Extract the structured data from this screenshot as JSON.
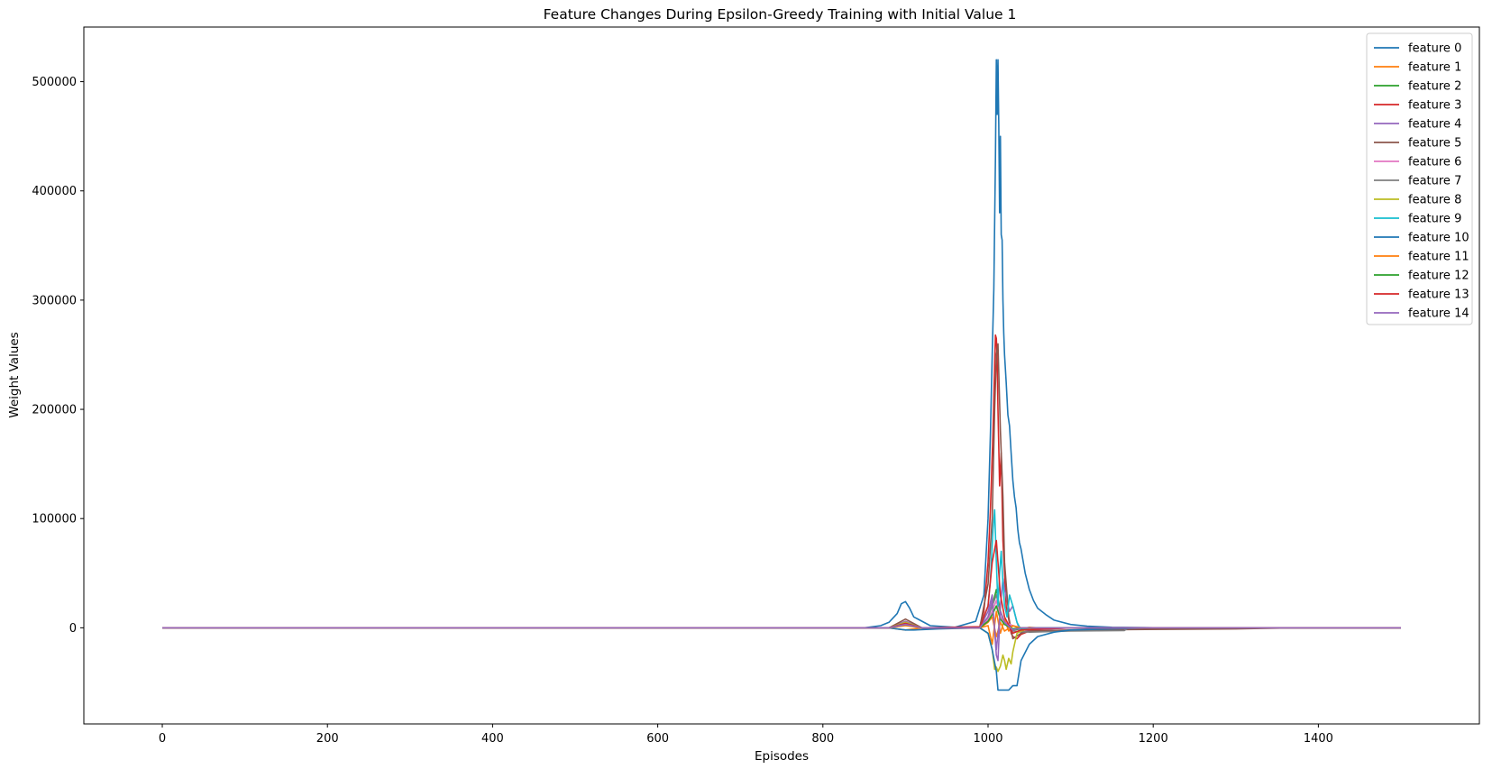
{
  "chart_data": {
    "type": "line",
    "title": "Feature Changes During Epsilon-Greedy Training with Initial Value 1",
    "xlabel": "Episodes",
    "ylabel": "Weight Values",
    "xlim": [
      -95,
      1595
    ],
    "ylim": [
      -88000,
      550000
    ],
    "xticks": [
      0,
      200,
      400,
      600,
      800,
      1000,
      1200,
      1400
    ],
    "yticks": [
      0,
      100000,
      200000,
      300000,
      400000,
      500000
    ],
    "grid": false,
    "legend_position": "top-right",
    "series": [
      {
        "name": "feature 0",
        "color": "#1f77b4",
        "x": [
          0,
          850,
          870,
          880,
          890,
          895,
          900,
          905,
          910,
          930,
          960,
          985,
          995,
          1000,
          1003,
          1005,
          1007,
          1008,
          1009,
          1010,
          1011,
          1012,
          1013,
          1014,
          1015,
          1016,
          1017,
          1018,
          1019,
          1020,
          1022,
          1024,
          1026,
          1028,
          1030,
          1032,
          1034,
          1036,
          1038,
          1040,
          1045,
          1050,
          1055,
          1060,
          1070,
          1080,
          1100,
          1120,
          1150,
          1200,
          1250,
          1300,
          1400,
          1500
        ],
        "y": [
          0,
          0,
          2000,
          5000,
          13000,
          22000,
          24000,
          18000,
          10000,
          2000,
          500,
          6000,
          30000,
          100000,
          180000,
          250000,
          310000,
          370000,
          430000,
          520000,
          470000,
          520000,
          460000,
          380000,
          450000,
          360000,
          355000,
          300000,
          270000,
          250000,
          225000,
          195000,
          185000,
          160000,
          135000,
          120000,
          110000,
          90000,
          78000,
          72000,
          50000,
          35000,
          25000,
          18000,
          12000,
          7000,
          3000,
          1500,
          500,
          100,
          0,
          0,
          0,
          0
        ]
      },
      {
        "name": "feature 1",
        "color": "#ff7f0e",
        "x": [
          0,
          880,
          900,
          920,
          990,
          1000,
          1005,
          1010,
          1015,
          1020,
          1025,
          1030,
          1040,
          1050,
          1060,
          1100,
          1200,
          1500
        ],
        "y": [
          0,
          0,
          -2000,
          0,
          0,
          2000,
          -15000,
          15000,
          -5000,
          8000,
          -3000,
          2000,
          -1000,
          500,
          0,
          0,
          0,
          0
        ]
      },
      {
        "name": "feature 2",
        "color": "#2ca02c",
        "x": [
          0,
          880,
          900,
          920,
          990,
          1000,
          1005,
          1010,
          1015,
          1020,
          1025,
          1030,
          1040,
          1050,
          1100,
          1500
        ],
        "y": [
          0,
          0,
          4000,
          0,
          0,
          10000,
          20000,
          35000,
          15000,
          5000,
          2000,
          -2000,
          -1000,
          0,
          0,
          0
        ]
      },
      {
        "name": "feature 3",
        "color": "#d62728",
        "x": [
          0,
          880,
          900,
          920,
          990,
          995,
          1000,
          1003,
          1006,
          1008,
          1009,
          1010,
          1011,
          1012,
          1014,
          1016,
          1018,
          1020,
          1022,
          1025,
          1028,
          1030,
          1035,
          1040,
          1050,
          1060,
          1100,
          1500
        ],
        "y": [
          0,
          0,
          5000,
          0,
          1000,
          15000,
          60000,
          110000,
          180000,
          240000,
          268000,
          265000,
          245000,
          200000,
          130000,
          160000,
          80000,
          50000,
          20000,
          8000,
          -5000,
          -8000,
          -10000,
          -6000,
          -3000,
          -1000,
          0,
          0
        ]
      },
      {
        "name": "feature 4",
        "color": "#9467bd",
        "x": [
          0,
          880,
          900,
          920,
          990,
          1000,
          1005,
          1010,
          1012,
          1015,
          1018,
          1020,
          1023,
          1026,
          1030,
          1035,
          1040,
          1050,
          1100,
          1500
        ],
        "y": [
          0,
          0,
          6000,
          0,
          0,
          15000,
          30000,
          -25000,
          -30000,
          20000,
          45000,
          35000,
          25000,
          15000,
          20000,
          5000,
          -5000,
          -2000,
          0,
          0
        ]
      },
      {
        "name": "feature 5",
        "color": "#8c564b",
        "x": [
          0,
          880,
          900,
          920,
          990,
          1000,
          1005,
          1008,
          1010,
          1012,
          1015,
          1018,
          1020,
          1025,
          1030,
          1040,
          1050,
          1100,
          1300,
          1370,
          1500
        ],
        "y": [
          0,
          0,
          8000,
          0,
          0,
          40000,
          100000,
          200000,
          250000,
          260000,
          180000,
          120000,
          60000,
          10000,
          -10000,
          -5000,
          -3000,
          -2000,
          -1000,
          0,
          0
        ]
      },
      {
        "name": "feature 6",
        "color": "#e377c2",
        "x": [
          0,
          880,
          900,
          920,
          990,
          1000,
          1005,
          1010,
          1015,
          1020,
          1030,
          1040,
          1100,
          1500
        ],
        "y": [
          0,
          0,
          3000,
          0,
          0,
          8000,
          15000,
          25000,
          10000,
          5000,
          2000,
          0,
          0,
          0
        ]
      },
      {
        "name": "feature 7",
        "color": "#7f7f7f",
        "x": [
          0,
          880,
          900,
          920,
          990,
          1000,
          1005,
          1010,
          1015,
          1020,
          1030,
          1050,
          1100,
          1165,
          1170,
          1300,
          1400,
          1500
        ],
        "y": [
          0,
          0,
          4000,
          0,
          0,
          10000,
          20000,
          30000,
          15000,
          5000,
          -3000,
          -4000,
          -3000,
          -2500,
          0,
          0,
          0,
          0
        ]
      },
      {
        "name": "feature 8",
        "color": "#bcbd22",
        "x": [
          0,
          880,
          900,
          920,
          990,
          1000,
          1005,
          1008,
          1010,
          1012,
          1015,
          1018,
          1020,
          1022,
          1025,
          1028,
          1030,
          1033,
          1035,
          1040,
          1050,
          1100,
          1500
        ],
        "y": [
          0,
          0,
          5000,
          0,
          0,
          -5000,
          -20000,
          -38000,
          -36000,
          -40000,
          -35000,
          -25000,
          -30000,
          -38000,
          -28000,
          -33000,
          -22000,
          -12000,
          -5000,
          -3000,
          -1000,
          0,
          0
        ]
      },
      {
        "name": "feature 9",
        "color": "#17becf",
        "x": [
          0,
          880,
          900,
          920,
          990,
          1000,
          1003,
          1006,
          1008,
          1010,
          1012,
          1014,
          1016,
          1018,
          1020,
          1023,
          1026,
          1030,
          1035,
          1040,
          1050,
          1100,
          1500
        ],
        "y": [
          0,
          0,
          4000,
          0,
          0,
          20000,
          45000,
          90000,
          108000,
          60000,
          20000,
          50000,
          70000,
          40000,
          20000,
          10000,
          30000,
          20000,
          5000,
          -2000,
          0,
          0,
          0
        ]
      },
      {
        "name": "feature 10",
        "color": "#1f77b4",
        "x": [
          0,
          880,
          900,
          910,
          940,
          990,
          1000,
          1005,
          1010,
          1012,
          1014,
          1016,
          1020,
          1025,
          1030,
          1035,
          1040,
          1050,
          1060,
          1080,
          1100,
          1150,
          1200,
          1300,
          1400,
          1500
        ],
        "y": [
          0,
          0,
          -2000,
          -2000,
          -1000,
          0,
          -5000,
          -20000,
          -40000,
          -57000,
          -57000,
          -57000,
          -57000,
          -57000,
          -53000,
          -53000,
          -30000,
          -15000,
          -8000,
          -4000,
          -2000,
          -1000,
          0,
          0,
          0,
          0
        ]
      },
      {
        "name": "feature 11",
        "color": "#ff7f0e",
        "x": [
          0,
          880,
          900,
          920,
          990,
          1000,
          1005,
          1010,
          1015,
          1020,
          1030,
          1040,
          1100,
          1500
        ],
        "y": [
          0,
          0,
          2000,
          0,
          0,
          5000,
          10000,
          -8000,
          5000,
          -3000,
          2000,
          0,
          0,
          0
        ]
      },
      {
        "name": "feature 12",
        "color": "#2ca02c",
        "x": [
          0,
          880,
          900,
          920,
          990,
          1000,
          1005,
          1010,
          1015,
          1020,
          1030,
          1040,
          1100,
          1500
        ],
        "y": [
          0,
          0,
          3000,
          0,
          0,
          6000,
          12000,
          20000,
          8000,
          3000,
          -1000,
          0,
          0,
          0
        ]
      },
      {
        "name": "feature 13",
        "color": "#d62728",
        "x": [
          0,
          880,
          900,
          920,
          990,
          1000,
          1005,
          1010,
          1015,
          1020,
          1030,
          1040,
          1100,
          1500
        ],
        "y": [
          0,
          0,
          4000,
          0,
          0,
          20000,
          60000,
          80000,
          30000,
          10000,
          -5000,
          -2000,
          0,
          0
        ]
      },
      {
        "name": "feature 14",
        "color": "#9467bd",
        "x": [
          0,
          880,
          900,
          920,
          990,
          1000,
          1005,
          1010,
          1015,
          1020,
          1030,
          1040,
          1100,
          1500
        ],
        "y": [
          0,
          0,
          3000,
          0,
          0,
          10000,
          25000,
          -20000,
          15000,
          5000,
          -2000,
          0,
          0,
          0
        ]
      }
    ]
  }
}
